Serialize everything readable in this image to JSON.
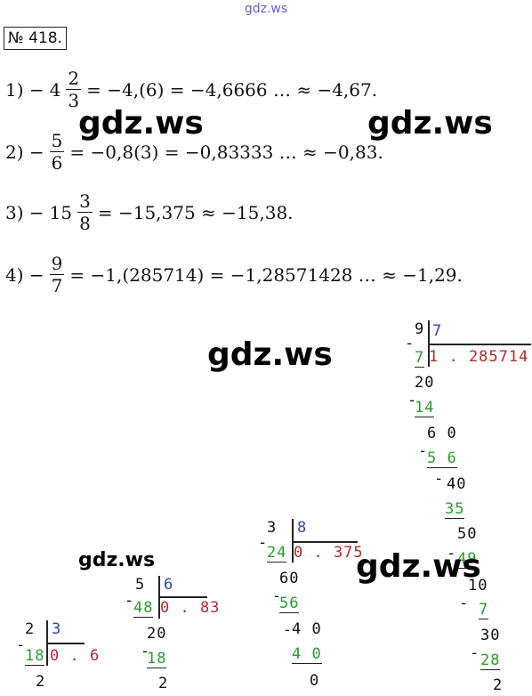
{
  "header": {
    "watermark": "gdz.ws",
    "problem": "№ 418."
  },
  "lines": [
    {
      "prefix": "1) −",
      "whole": "4",
      "num": "2",
      "den": "3",
      "rest": "= −4,(6) = −4,6666 … ≈ −4,67."
    },
    {
      "prefix": "2) −",
      "num": "5",
      "den": "6",
      "rest": "= −0,8(3) = −0,83333 … ≈ −0,83."
    },
    {
      "prefix": "3) −",
      "whole": "15",
      "num": "3",
      "den": "8",
      "rest": "= −15,375 ≈ −15,38."
    },
    {
      "prefix": "4) −",
      "num": "9",
      "den": "7",
      "rest": "= −1,(285714) = −1,28571428 … ≈ −1,29."
    }
  ],
  "watermarks": [
    "gdz.ws",
    "gdz.ws",
    "gdz.ws",
    "gdz.ws",
    "gdz.ws"
  ],
  "divisions": [
    {
      "dividend": "9",
      "divisor": "7",
      "quotient": "1 . 285714",
      "rows": [
        {
          "text": "-",
          "kind": "minus"
        },
        {
          "text": "7",
          "kind": "product"
        },
        {
          "text": "20",
          "kind": "rest"
        },
        {
          "text": "-",
          "kind": "minus"
        },
        {
          "text": "14",
          "kind": "product"
        },
        {
          "text": "6 0",
          "kind": "rest"
        },
        {
          "text": "-",
          "kind": "minus"
        },
        {
          "text": "5 6",
          "kind": "product"
        },
        {
          "text": "-",
          "kind": "minus"
        },
        {
          "text": "40",
          "kind": "rest"
        },
        {
          "text": "35",
          "kind": "product"
        },
        {
          "text": "50",
          "kind": "rest"
        },
        {
          "text": "-",
          "kind": "minus"
        },
        {
          "text": "49",
          "kind": "product"
        },
        {
          "text": "10",
          "kind": "rest"
        },
        {
          "text": "-",
          "kind": "minus"
        },
        {
          "text": "7",
          "kind": "product"
        },
        {
          "text": "30",
          "kind": "rest"
        },
        {
          "text": "-",
          "kind": "minus"
        },
        {
          "text": "28",
          "kind": "product"
        },
        {
          "text": "2",
          "kind": "rest"
        }
      ]
    },
    {
      "dividend": "3",
      "divisor": "8",
      "quotient": "0 . 375",
      "rows": [
        {
          "text": "-",
          "kind": "minus"
        },
        {
          "text": "24",
          "kind": "product"
        },
        {
          "text": "60",
          "kind": "rest"
        },
        {
          "text": "-",
          "kind": "minus"
        },
        {
          "text": "56",
          "kind": "product"
        },
        {
          "text": "-",
          "kind": "minus"
        },
        {
          "text": "4 0",
          "kind": "rest"
        },
        {
          "text": "4 0",
          "kind": "product"
        },
        {
          "text": "0",
          "kind": "rest"
        }
      ]
    },
    {
      "dividend": "5",
      "divisor": "6",
      "quotient": "0 . 83",
      "rows": [
        {
          "text": "-",
          "kind": "minus"
        },
        {
          "text": "48",
          "kind": "product"
        },
        {
          "text": "20",
          "kind": "rest"
        },
        {
          "text": "-",
          "kind": "minus"
        },
        {
          "text": "18",
          "kind": "product"
        },
        {
          "text": "2",
          "kind": "rest"
        }
      ]
    },
    {
      "dividend": "2",
      "divisor": "3",
      "quotient": "0 . 6",
      "rows": [
        {
          "text": "-",
          "kind": "minus"
        },
        {
          "text": "18",
          "kind": "product"
        },
        {
          "text": "2",
          "kind": "rest"
        }
      ]
    }
  ]
}
